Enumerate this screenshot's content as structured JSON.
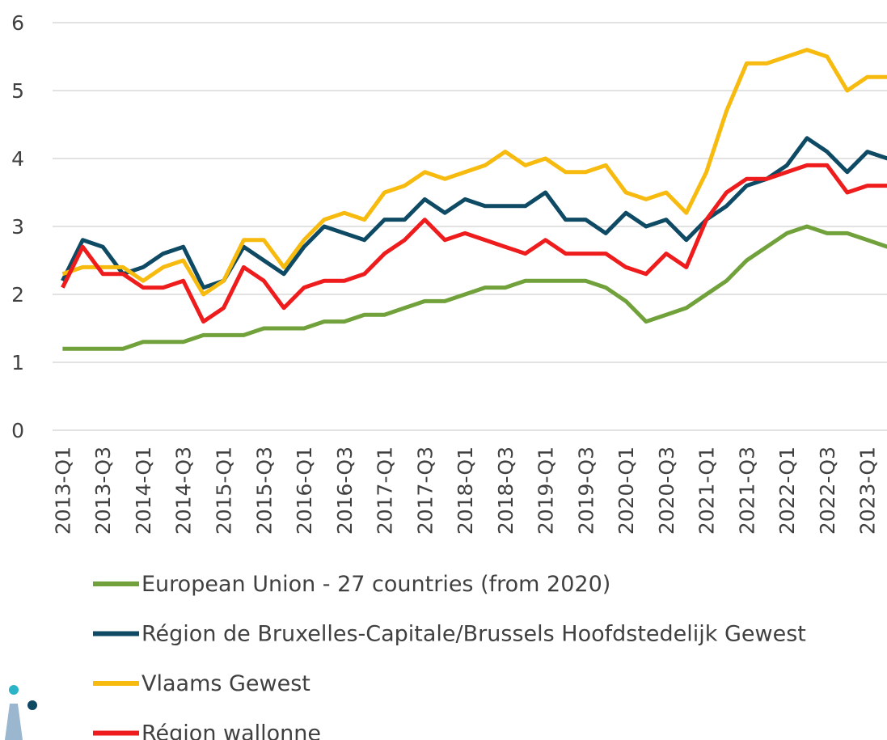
{
  "chart_data": {
    "type": "line",
    "categories": [
      "2013-Q1",
      null,
      "2013-Q3",
      null,
      "2014-Q1",
      null,
      "2014-Q3",
      null,
      "2015-Q1",
      null,
      "2015-Q3",
      null,
      "2016-Q1",
      null,
      "2016-Q3",
      null,
      "2017-Q1",
      null,
      "2017-Q3",
      null,
      "2018-Q1",
      null,
      "2018-Q3",
      null,
      "2019-Q1",
      null,
      "2019-Q3",
      null,
      "2020-Q1",
      null,
      "2020-Q3",
      null,
      "2021-Q1",
      null,
      "2021-Q3",
      null,
      "2022-Q1",
      null,
      "2022-Q3",
      null,
      "2023-Q1",
      null
    ],
    "series": [
      {
        "name": "European Union - 27 countries (from 2020)",
        "color": "#70a13a",
        "values": [
          1.2,
          1.2,
          1.2,
          1.2,
          1.3,
          1.3,
          1.3,
          1.4,
          1.4,
          1.4,
          1.5,
          1.5,
          1.5,
          1.6,
          1.6,
          1.7,
          1.7,
          1.8,
          1.9,
          1.9,
          2.0,
          2.1,
          2.1,
          2.2,
          2.2,
          2.2,
          2.2,
          2.1,
          1.9,
          1.6,
          1.7,
          1.8,
          2.0,
          2.2,
          2.5,
          2.7,
          2.9,
          3.0,
          2.9,
          2.9,
          2.8,
          2.7
        ]
      },
      {
        "name": "Région de Bruxelles-Capitale/Brussels Hoofdstedelijk Gewest",
        "color": "#0f4a64",
        "values": [
          2.2,
          2.8,
          2.7,
          2.3,
          2.4,
          2.6,
          2.7,
          2.1,
          2.2,
          2.7,
          2.5,
          2.3,
          2.7,
          3.0,
          2.9,
          2.8,
          3.1,
          3.1,
          3.4,
          3.2,
          3.4,
          3.3,
          3.3,
          3.3,
          3.5,
          3.1,
          3.1,
          2.9,
          3.2,
          3.0,
          3.1,
          2.8,
          3.1,
          3.3,
          3.6,
          3.7,
          3.9,
          4.3,
          4.1,
          3.8,
          4.1,
          4.0
        ]
      },
      {
        "name": "Vlaams Gewest",
        "color": "#f7bb10",
        "values": [
          2.3,
          2.4,
          2.4,
          2.4,
          2.2,
          2.4,
          2.5,
          2.0,
          2.2,
          2.8,
          2.8,
          2.4,
          2.8,
          3.1,
          3.2,
          3.1,
          3.5,
          3.6,
          3.8,
          3.7,
          3.8,
          3.9,
          4.1,
          3.9,
          4.0,
          3.8,
          3.8,
          3.9,
          3.5,
          3.4,
          3.5,
          3.2,
          3.8,
          4.7,
          5.4,
          5.4,
          5.5,
          5.6,
          5.5,
          5.0,
          5.2,
          5.2
        ]
      },
      {
        "name": "Région wallonne",
        "color": "#ee1c1c",
        "values": [
          2.1,
          2.7,
          2.3,
          2.3,
          2.1,
          2.1,
          2.2,
          1.6,
          1.8,
          2.4,
          2.2,
          1.8,
          2.1,
          2.2,
          2.2,
          2.3,
          2.6,
          2.8,
          3.1,
          2.8,
          2.9,
          2.8,
          2.7,
          2.6,
          2.8,
          2.6,
          2.6,
          2.6,
          2.4,
          2.3,
          2.6,
          2.4,
          3.1,
          3.5,
          3.7,
          3.7,
          3.8,
          3.9,
          3.9,
          3.5,
          3.6,
          3.6
        ]
      }
    ],
    "ylim": [
      0,
      6
    ],
    "yticks": [
      0,
      1,
      2,
      3,
      4,
      5,
      6
    ],
    "grid": true,
    "legend": "bottom"
  }
}
